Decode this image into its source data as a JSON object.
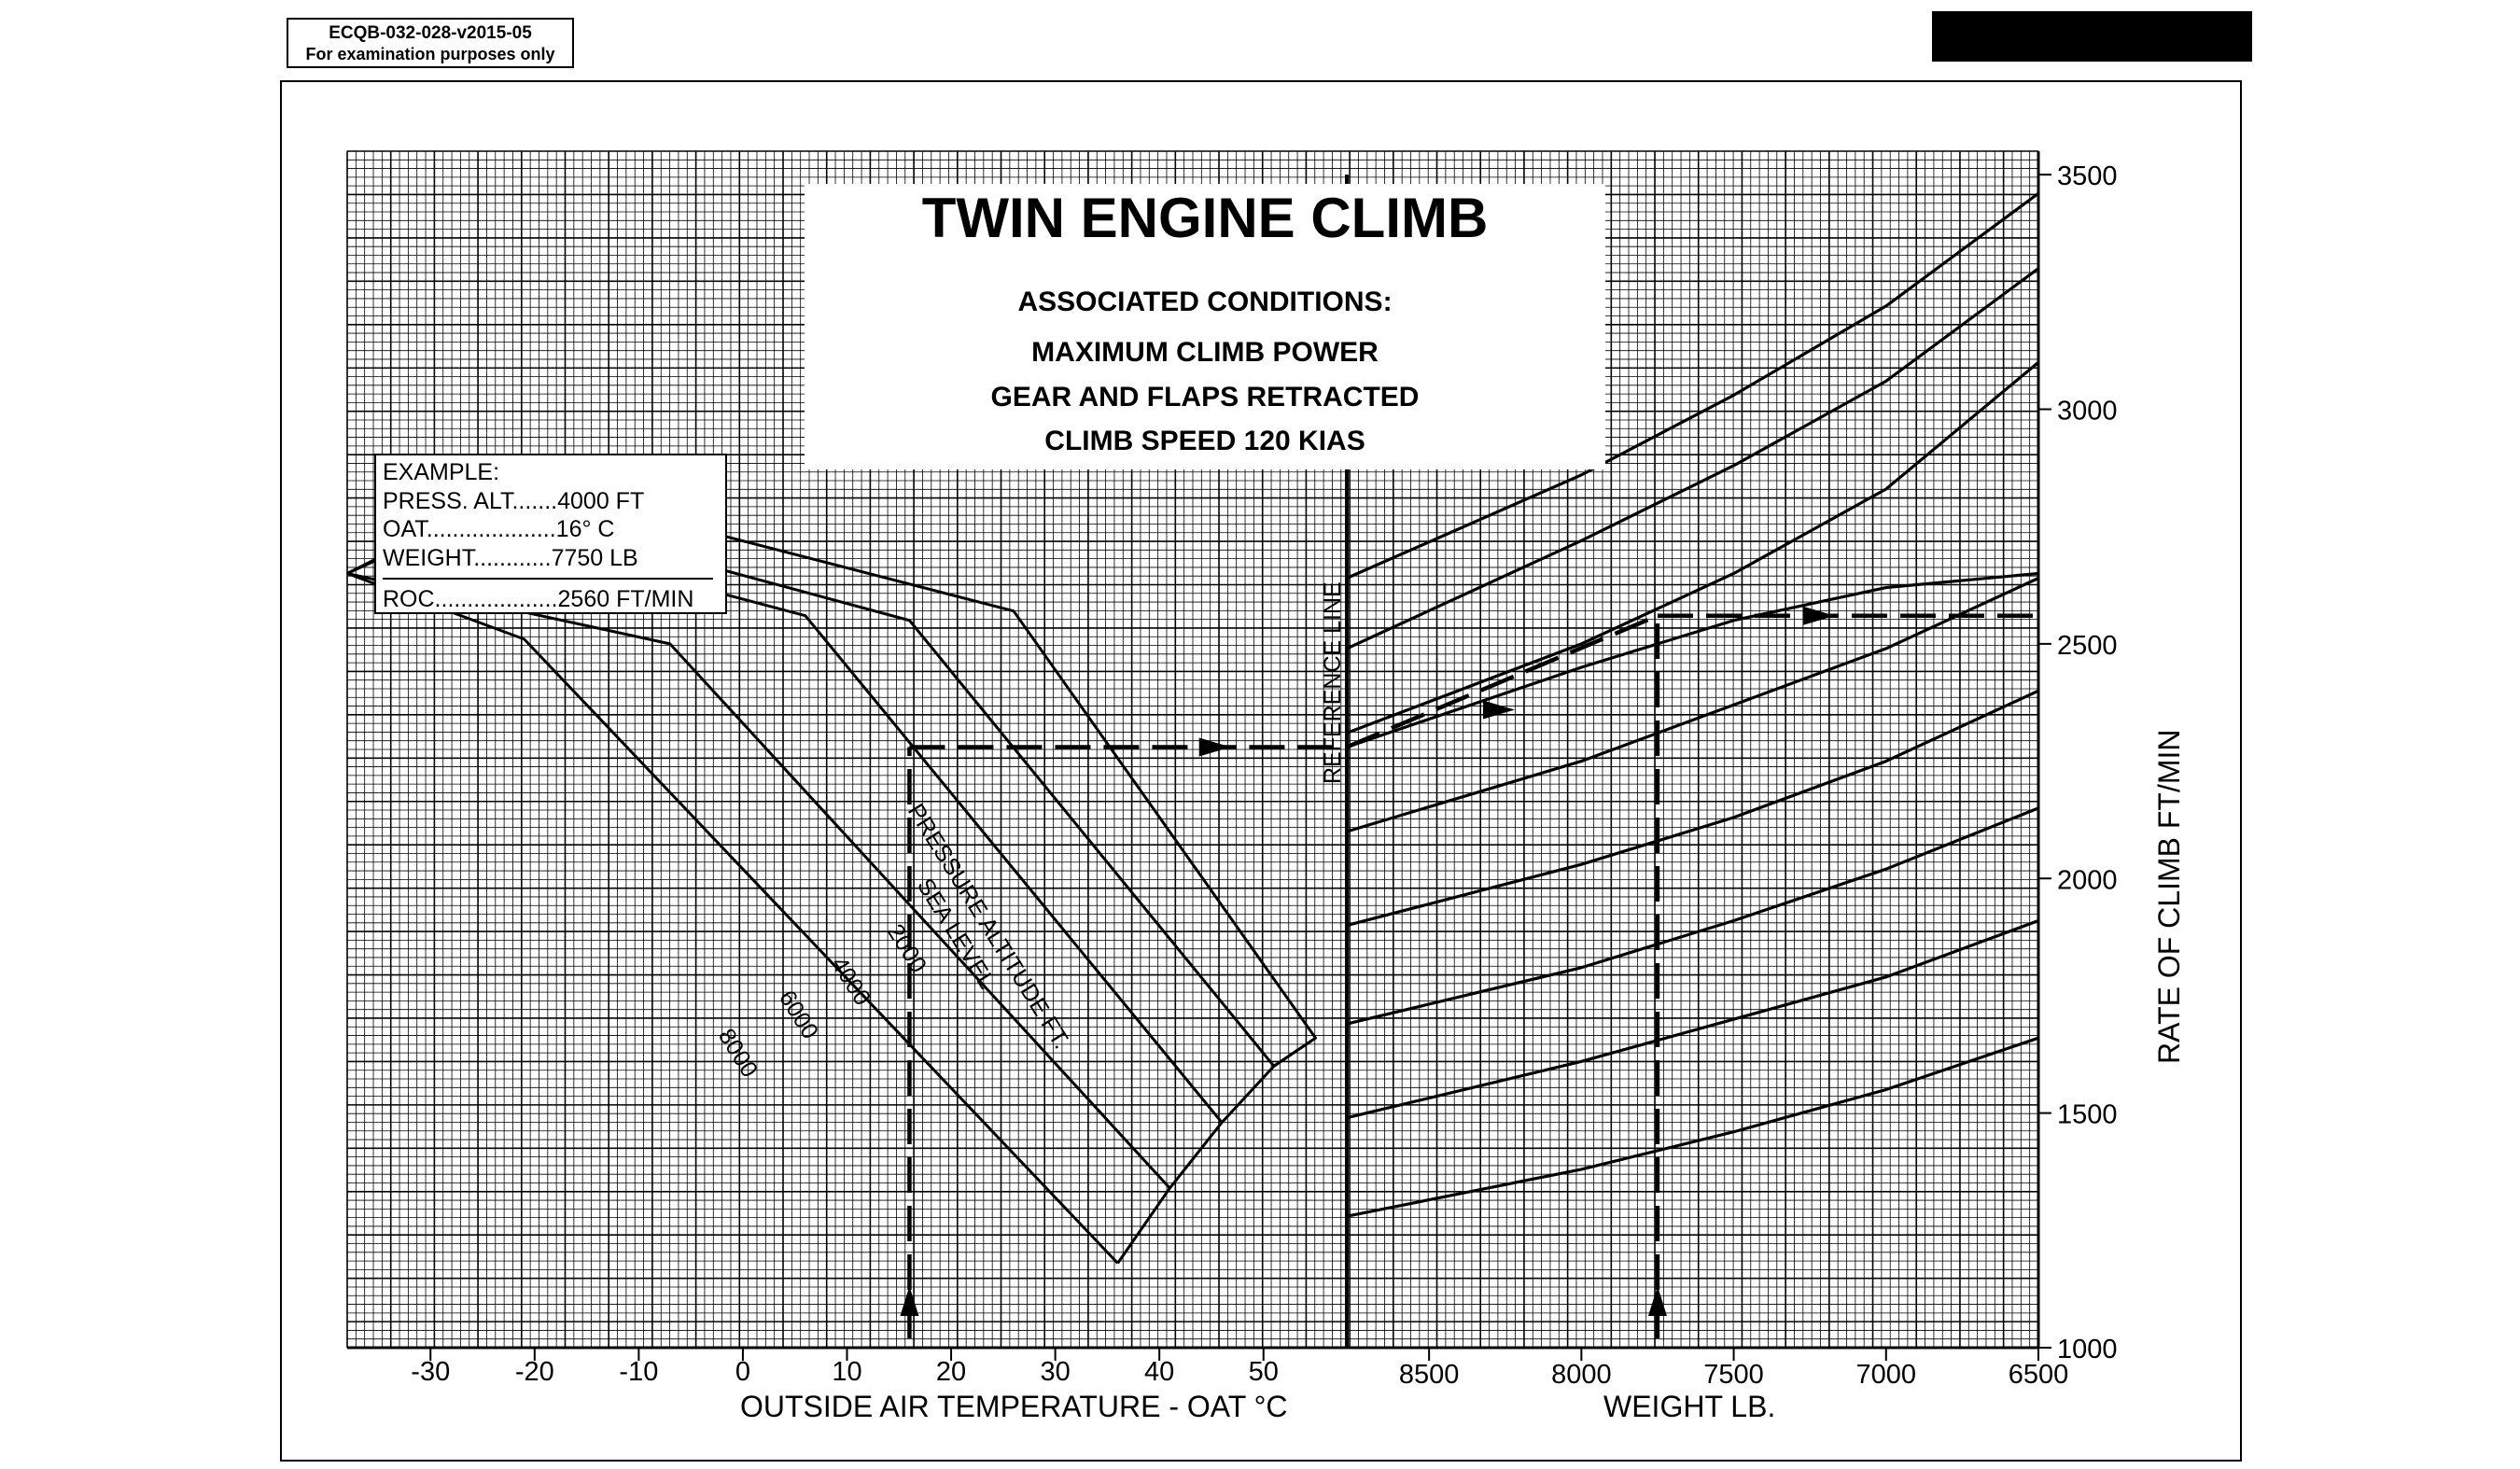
{
  "document": {
    "reference": "ECQB-032-028-v2015-05",
    "purpose_note": "For examination purposes only"
  },
  "chart_data": {
    "type": "line",
    "title": "TWIN ENGINE CLIMB",
    "conditions": {
      "heading": "ASSOCIATED CONDITIONS:",
      "lines": [
        "MAXIMUM CLIMB POWER",
        "GEAR AND FLAPS RETRACTED",
        "CLIMB SPEED 120 KIAS"
      ]
    },
    "example": {
      "heading": "EXAMPLE:",
      "lines": [
        "PRESS. ALT.......4000 FT",
        "OAT....................16° C",
        "WEIGHT............7750 LB"
      ],
      "result": "ROC...................2560 FT/MIN"
    },
    "reference_line_label": "REFERENCE LINE",
    "pressure_altitude_label": "PRESSURE ALTITUDE FT.",
    "oat_axis": {
      "label": "OUTSIDE AIR TEMPERATURE - OAT °C",
      "ticks": [
        "-30",
        "-20",
        "-10",
        "0",
        "10",
        "20",
        "30",
        "40",
        "50"
      ],
      "tick_values": [
        -30,
        -20,
        -10,
        0,
        10,
        20,
        30,
        40,
        50
      ],
      "range": [
        -38,
        58
      ]
    },
    "weight_axis": {
      "label": "WEIGHT LB.",
      "ticks": [
        "8500",
        "8000",
        "7500",
        "7000",
        "6500"
      ],
      "tick_values": [
        8500,
        8000,
        7500,
        7000,
        6500
      ],
      "range": [
        8770,
        6500
      ],
      "reversed": true
    },
    "roc_axis": {
      "label": "RATE OF CLIMB FT/MIN",
      "ticks": [
        "1000",
        "1500",
        "2000",
        "2500",
        "3000",
        "3500"
      ],
      "tick_values": [
        1000,
        1500,
        2000,
        2500,
        3000,
        3500
      ],
      "range": [
        1000,
        3550
      ]
    },
    "altitude_lines": [
      {
        "name": "SEA LEVEL",
        "points": [
          [
            -38,
            2650
          ],
          [
            -21,
            2840
          ],
          [
            26,
            2570
          ],
          [
            55,
            1660
          ],
          [
            51,
            1600
          ]
        ]
      },
      {
        "name": "2000",
        "points": [
          [
            -38,
            2650
          ],
          [
            -24,
            2790
          ],
          [
            16,
            2550
          ],
          [
            51,
            1600
          ]
        ]
      },
      {
        "name": "4000",
        "points": [
          [
            -38,
            2650
          ],
          [
            -28,
            2760
          ],
          [
            6,
            2560
          ],
          [
            46,
            1480
          ]
        ]
      },
      {
        "name": "6000",
        "points": [
          [
            -38,
            2650
          ],
          [
            -7,
            2500
          ],
          [
            41,
            1340
          ]
        ]
      },
      {
        "name": "8000",
        "points": [
          [
            -38,
            2650
          ],
          [
            -21,
            2510
          ],
          [
            36,
            1180
          ]
        ]
      }
    ],
    "oat_boundary": [
      [
        55,
        1660
      ],
      [
        51,
        1600
      ],
      [
        46,
        1480
      ],
      [
        41,
        1340
      ],
      [
        36,
        1180
      ]
    ],
    "weight_guide_lines": [
      {
        "points": [
          [
            8770,
            2640
          ],
          [
            8000,
            2860
          ],
          [
            7500,
            3030
          ],
          [
            7000,
            3220
          ],
          [
            6500,
            3460
          ]
        ]
      },
      {
        "points": [
          [
            8770,
            2490
          ],
          [
            8000,
            2720
          ],
          [
            7500,
            2880
          ],
          [
            7000,
            3060
          ],
          [
            6500,
            3300
          ]
        ]
      },
      {
        "points": [
          [
            8770,
            2310
          ],
          [
            8000,
            2500
          ],
          [
            7500,
            2650
          ],
          [
            7000,
            2830
          ],
          [
            6500,
            3100
          ]
        ]
      },
      {
        "points": [
          [
            8770,
            2280
          ],
          [
            8000,
            2450
          ],
          [
            7500,
            2550
          ],
          [
            7000,
            2620
          ],
          [
            6500,
            2650
          ]
        ]
      },
      {
        "points": [
          [
            8770,
            2100
          ],
          [
            8000,
            2250
          ],
          [
            7500,
            2370
          ],
          [
            7000,
            2490
          ],
          [
            6500,
            2640
          ]
        ]
      },
      {
        "points": [
          [
            8770,
            1900
          ],
          [
            8000,
            2030
          ],
          [
            7500,
            2130
          ],
          [
            7000,
            2250
          ],
          [
            6500,
            2400
          ]
        ]
      },
      {
        "points": [
          [
            8770,
            1690
          ],
          [
            8000,
            1810
          ],
          [
            7500,
            1910
          ],
          [
            7000,
            2020
          ],
          [
            6500,
            2150
          ]
        ]
      },
      {
        "points": [
          [
            8770,
            1490
          ],
          [
            8000,
            1610
          ],
          [
            7500,
            1700
          ],
          [
            7000,
            1790
          ],
          [
            6500,
            1910
          ]
        ]
      },
      {
        "points": [
          [
            8770,
            1280
          ],
          [
            8000,
            1380
          ],
          [
            7500,
            1460
          ],
          [
            7000,
            1550
          ],
          [
            6500,
            1660
          ]
        ]
      }
    ],
    "example_path": {
      "oat": 16,
      "pressure_altitude": 4000,
      "reference_roc": 2280,
      "weight": 7750,
      "result_roc": 2560
    }
  }
}
